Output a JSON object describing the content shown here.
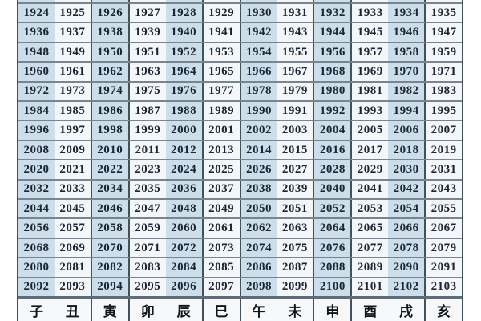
{
  "table": {
    "title": "zodiac-year-lookup-table",
    "year_rows": [
      [
        "1924",
        "1925",
        "1926",
        "1927",
        "1928",
        "1929",
        "1930",
        "1931",
        "1932",
        "1933",
        "1934",
        "1935"
      ],
      [
        "1936",
        "1937",
        "1938",
        "1939",
        "1940",
        "1941",
        "1942",
        "1943",
        "1944",
        "1945",
        "1946",
        "1947"
      ],
      [
        "1948",
        "1949",
        "1950",
        "1951",
        "1952",
        "1953",
        "1954",
        "1955",
        "1956",
        "1957",
        "1958",
        "1959"
      ],
      [
        "1960",
        "1961",
        "1962",
        "1963",
        "1964",
        "1965",
        "1966",
        "1967",
        "1968",
        "1969",
        "1970",
        "1971"
      ],
      [
        "1972",
        "1973",
        "1974",
        "1975",
        "1976",
        "1977",
        "1978",
        "1979",
        "1980",
        "1981",
        "1982",
        "1983"
      ],
      [
        "1984",
        "1985",
        "1986",
        "1987",
        "1988",
        "1989",
        "1990",
        "1991",
        "1992",
        "1993",
        "1994",
        "1995"
      ],
      [
        "1996",
        "1997",
        "1998",
        "1999",
        "2000",
        "2001",
        "2002",
        "2003",
        "2004",
        "2005",
        "2006",
        "2007"
      ],
      [
        "2008",
        "2009",
        "2010",
        "2011",
        "2012",
        "2013",
        "2014",
        "2015",
        "2016",
        "2017",
        "2018",
        "2019"
      ],
      [
        "2020",
        "2021",
        "2022",
        "2023",
        "2024",
        "2025",
        "2026",
        "2027",
        "2028",
        "2029",
        "2030",
        "2031"
      ],
      [
        "2032",
        "2033",
        "2034",
        "2035",
        "2036",
        "2037",
        "2038",
        "2039",
        "2040",
        "2041",
        "2042",
        "2043"
      ],
      [
        "2044",
        "2045",
        "2046",
        "2047",
        "2048",
        "2049",
        "2050",
        "2051",
        "2052",
        "2053",
        "2054",
        "2055"
      ],
      [
        "2056",
        "2057",
        "2058",
        "2059",
        "2060",
        "2061",
        "2062",
        "2063",
        "2064",
        "2065",
        "2066",
        "2067"
      ],
      [
        "2068",
        "2069",
        "2070",
        "2071",
        "2072",
        "2073",
        "2074",
        "2075",
        "2076",
        "2077",
        "2078",
        "2079"
      ],
      [
        "2080",
        "2081",
        "2082",
        "2083",
        "2084",
        "2085",
        "2086",
        "2087",
        "2088",
        "2089",
        "2090",
        "2091"
      ],
      [
        "2092",
        "2093",
        "2094",
        "2095",
        "2096",
        "2097",
        "2098",
        "2099",
        "2100",
        "2101",
        "2102",
        "2103"
      ]
    ],
    "branch_row": [
      "子",
      "丑",
      "寅",
      "卯",
      "辰",
      "巳",
      "午",
      "未",
      "申",
      "酉",
      "戌",
      "亥"
    ]
  },
  "layout_tokens": {
    "blue_column_indexes": [
      0,
      2,
      4,
      6,
      8,
      10
    ],
    "dark_left_border_indexes": [
      2,
      3,
      5,
      6,
      8,
      9,
      11
    ]
  },
  "colors": {
    "cell_blue": "#cddeeb",
    "cell_white": "#f4f7fa",
    "row_line": "#76858f",
    "column_line": "#42525c",
    "branch_separator": "#5d6c76",
    "year_text": "#1c2533",
    "branch_text": "#101519",
    "page_background": "#ffffff"
  }
}
